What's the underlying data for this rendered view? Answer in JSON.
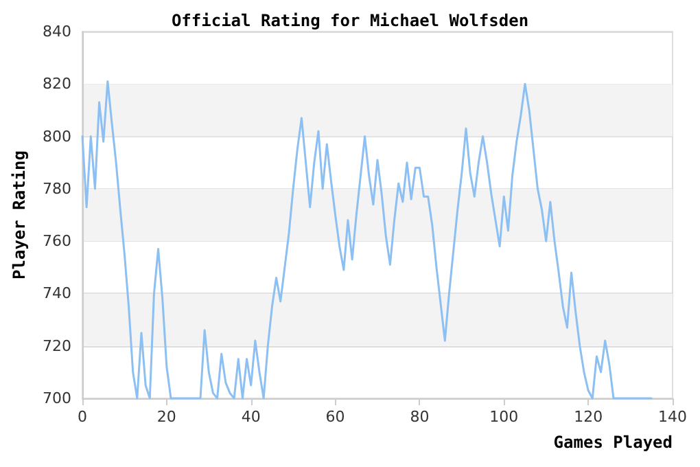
{
  "chart_data": {
    "type": "line",
    "title": "Official Rating for Michael Wolfsden",
    "xlabel": "Games Played",
    "ylabel": "Player Rating",
    "x": [
      0,
      1,
      2,
      3,
      4,
      5,
      6,
      7,
      8,
      9,
      10,
      11,
      12,
      13,
      14,
      15,
      16,
      17,
      18,
      19,
      20,
      21,
      22,
      23,
      24,
      25,
      26,
      27,
      28,
      29,
      30,
      31,
      32,
      33,
      34,
      35,
      36,
      37,
      38,
      39,
      40,
      41,
      42,
      43,
      44,
      45,
      46,
      47,
      48,
      49,
      50,
      51,
      52,
      53,
      54,
      55,
      56,
      57,
      58,
      59,
      60,
      61,
      62,
      63,
      64,
      65,
      66,
      67,
      68,
      69,
      70,
      71,
      72,
      73,
      74,
      75,
      76,
      77,
      78,
      79,
      80,
      81,
      82,
      83,
      84,
      85,
      86,
      87,
      88,
      89,
      90,
      91,
      92,
      93,
      94,
      95,
      96,
      97,
      98,
      99,
      100,
      101,
      102,
      103,
      104,
      105,
      106,
      107,
      108,
      109,
      110,
      111,
      112,
      113,
      114,
      115,
      116,
      117,
      118,
      119,
      120,
      121,
      122,
      123,
      124,
      125,
      126,
      127,
      128,
      129,
      130,
      131,
      132,
      133,
      134,
      135
    ],
    "series": [
      {
        "color": "#8cbff2",
        "values": [
          800,
          773,
          800,
          780,
          813,
          798,
          821,
          805,
          790,
          772,
          755,
          735,
          710,
          700,
          725,
          705,
          700,
          740,
          757,
          738,
          712,
          700,
          700,
          700,
          700,
          700,
          700,
          700,
          700,
          726,
          710,
          702,
          700,
          717,
          706,
          702,
          700,
          715,
          700,
          715,
          705,
          722,
          710,
          700,
          720,
          735,
          746,
          737,
          750,
          763,
          780,
          795,
          807,
          790,
          773,
          790,
          802,
          780,
          797,
          783,
          770,
          758,
          749,
          768,
          753,
          770,
          785,
          800,
          785,
          774,
          791,
          778,
          762,
          751,
          768,
          782,
          775,
          790,
          776,
          788,
          788,
          777,
          777,
          766,
          750,
          736,
          722,
          740,
          756,
          772,
          786,
          803,
          786,
          777,
          790,
          800,
          790,
          778,
          768,
          758,
          777,
          764,
          785,
          798,
          808,
          820,
          810,
          795,
          780,
          772,
          760,
          775,
          760,
          748,
          735,
          727,
          748,
          733,
          720,
          710,
          703,
          700,
          716,
          710,
          722,
          713,
          700,
          700,
          700,
          700,
          700,
          700,
          700,
          700,
          700,
          700
        ]
      }
    ],
    "xlim": [
      0,
      140
    ],
    "xticks": [
      0,
      20,
      40,
      60,
      80,
      100,
      120,
      140
    ],
    "ylim": [
      700,
      840
    ],
    "yticks": [
      700,
      720,
      740,
      760,
      780,
      800,
      820,
      840
    ],
    "grid": "y",
    "marker": "none",
    "line_style": "solid",
    "bands": [
      {
        "axis": "y",
        "from": 720,
        "to": 740,
        "color": "#f3f3f3"
      },
      {
        "axis": "y",
        "from": 760,
        "to": 780,
        "color": "#f3f3f3"
      },
      {
        "axis": "y",
        "from": 800,
        "to": 820,
        "color": "#f3f3f3"
      }
    ]
  }
}
